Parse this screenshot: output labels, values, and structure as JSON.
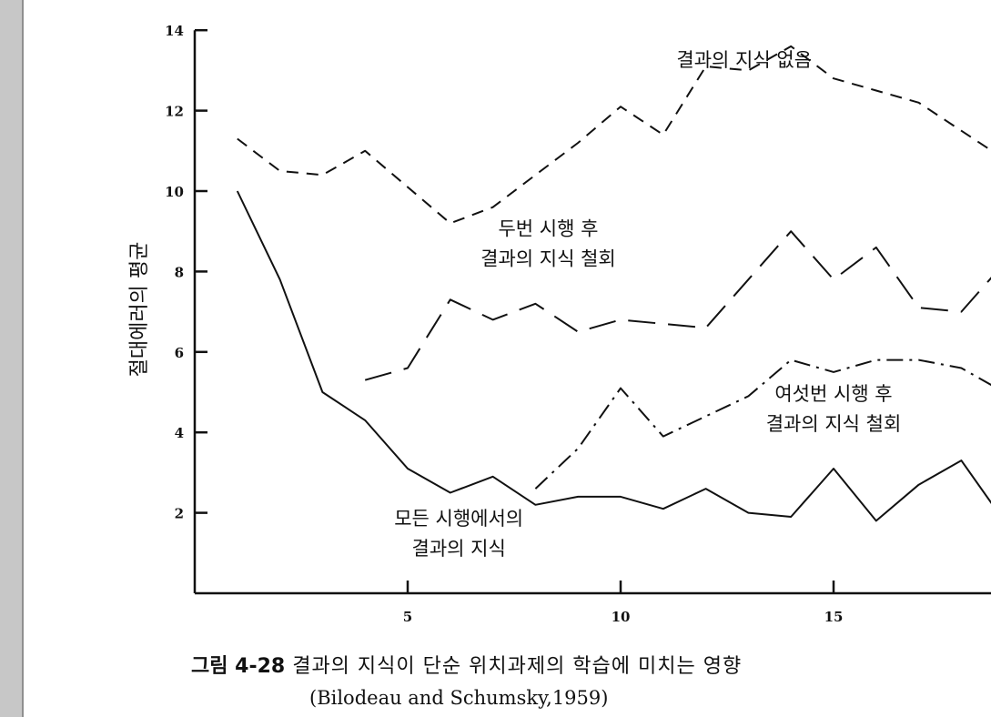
{
  "chart_data": {
    "type": "line",
    "title": "",
    "xlabel": "",
    "ylabel": "절대에러의 평균",
    "xlim": [
      0,
      20
    ],
    "ylim": [
      0,
      14
    ],
    "x_ticks": [
      5,
      10,
      15
    ],
    "y_ticks": [
      2,
      4,
      6,
      8,
      10,
      12,
      14
    ],
    "grid": false,
    "series": [
      {
        "name": "결과의 지식 없음",
        "label_lines": [
          "결과의 지식 없음"
        ],
        "style": "dashed",
        "x": [
          1,
          2,
          3,
          4,
          5,
          6,
          7,
          8,
          9,
          10,
          11,
          12,
          13,
          14,
          15,
          16,
          17,
          18,
          19
        ],
        "y": [
          11.3,
          10.5,
          10.4,
          11.0,
          10.1,
          9.2,
          9.6,
          10.4,
          11.2,
          12.1,
          11.4,
          13.1,
          13.0,
          13.6,
          12.8,
          12.5,
          12.2,
          11.5,
          10.8
        ]
      },
      {
        "name": "두번 시행 후 결과의 지식 철회",
        "label_lines": [
          "두번 시행 후",
          "결과의 지식 철회"
        ],
        "style": "long-dash",
        "x": [
          4,
          5,
          6,
          7,
          8,
          9,
          10,
          11,
          12,
          13,
          14,
          15,
          16,
          17,
          18,
          19
        ],
        "y": [
          5.3,
          5.6,
          7.3,
          6.8,
          7.2,
          6.5,
          6.8,
          6.7,
          6.6,
          7.8,
          9.0,
          7.8,
          8.6,
          7.1,
          7.0,
          8.2
        ]
      },
      {
        "name": "여섯번 시행 후 결과의 지식 철회",
        "label_lines": [
          "여섯번 시행 후",
          "결과의 지식 철회"
        ],
        "style": "dash-dot",
        "x": [
          8,
          9,
          10,
          11,
          12,
          13,
          14,
          15,
          16,
          17,
          18,
          19
        ],
        "y": [
          2.6,
          3.6,
          5.1,
          3.9,
          4.4,
          4.9,
          5.8,
          5.5,
          5.8,
          5.8,
          5.6,
          5.0
        ]
      },
      {
        "name": "모든 시행에서의 결과의 지식",
        "label_lines": [
          "모든 시행에서의",
          "결과의 지식"
        ],
        "style": "solid",
        "x": [
          1,
          2,
          3,
          4,
          5,
          6,
          7,
          8,
          9,
          10,
          11,
          12,
          13,
          14,
          15,
          16,
          17,
          18,
          19
        ],
        "y": [
          10.0,
          7.8,
          5.0,
          4.3,
          3.1,
          2.5,
          2.9,
          2.2,
          2.4,
          2.4,
          2.1,
          2.6,
          2.0,
          1.9,
          3.1,
          1.8,
          2.7,
          3.3,
          1.8
        ]
      }
    ]
  },
  "caption": {
    "fig_label": "그림 4-28",
    "text": "결과의  지식이  단순  위치과제의  학습에  미치는  영향",
    "source": "(Bilodeau and Schumsky,1959)"
  },
  "colors": {
    "ink": "#111111",
    "sidebar": "#c7c7c7"
  }
}
